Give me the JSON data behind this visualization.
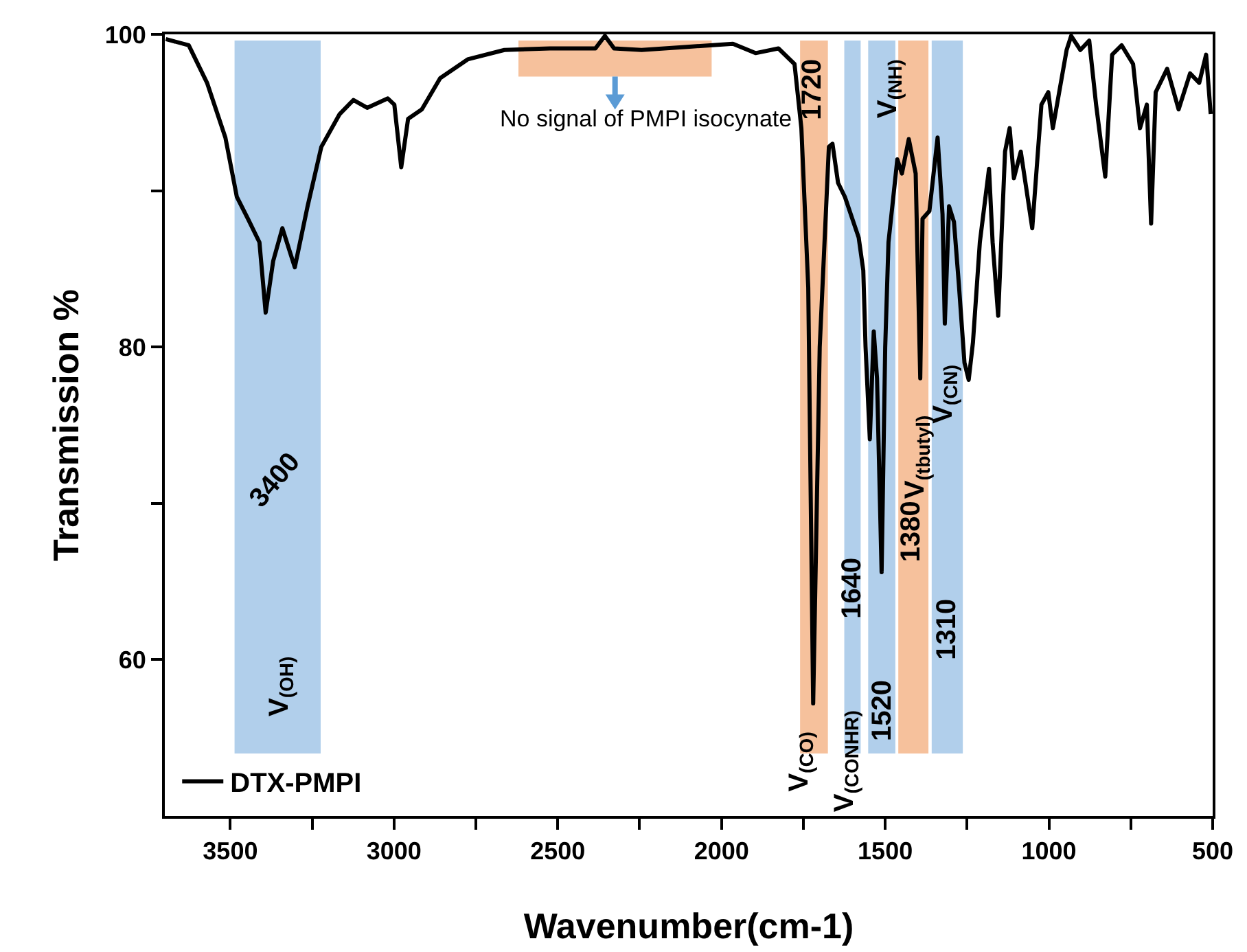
{
  "chart_data": {
    "type": "line",
    "xlabel": "Wavenumber(cm-1)",
    "ylabel": "Transmission %",
    "xlim": [
      3700,
      500
    ],
    "xticks": [
      3500,
      {
        "value": 3250,
        "label": null
      },
      3000,
      {
        "value": 2750,
        "label": null
      },
      2500,
      {
        "value": 2250,
        "label": null
      },
      2000,
      {
        "value": 1750,
        "label": null
      },
      1500,
      {
        "value": 1250,
        "label": null
      },
      1000,
      {
        "value": 750,
        "label": null
      },
      500
    ],
    "ylim": [
      50,
      100
    ],
    "yticks": [
      60,
      {
        "value": 70,
        "label": null
      },
      80,
      {
        "value": 90,
        "label": null
      },
      100
    ],
    "grid": false,
    "legend": "bottom left",
    "marker": "none",
    "line_style": "solid",
    "series": [
      {
        "name": "DTX-PMPI",
        "color": "#000000",
        "x": [
          3697,
          3627,
          3571,
          3515,
          3480,
          3446,
          3411,
          3392,
          3369,
          3341,
          3303,
          3264,
          3222,
          3166,
          3124,
          3082,
          3019,
          2999,
          2978,
          2957,
          2915,
          2859,
          2775,
          2663,
          2524,
          2385,
          2356,
          2328,
          2244,
          2105,
          1965,
          1896,
          1826,
          1777,
          1756,
          1735,
          1720,
          1700,
          1672,
          1661,
          1644,
          1623,
          1581,
          1567,
          1560,
          1547,
          1535,
          1525,
          1511,
          1500,
          1490,
          1463,
          1449,
          1428,
          1407,
          1393,
          1386,
          1365,
          1340,
          1325,
          1318,
          1305,
          1290,
          1275,
          1258,
          1245,
          1232,
          1211,
          1183,
          1172,
          1155,
          1134,
          1120,
          1107,
          1086,
          1051,
          1023,
          1002,
          988,
          946,
          932,
          904,
          877,
          856,
          828,
          807,
          778,
          743,
          722,
          701,
          688,
          674,
          639,
          604,
          569,
          541,
          520,
          506
        ],
        "values": [
          99.7,
          99.3,
          96.9,
          93.4,
          89.6,
          88.2,
          86.7,
          82.2,
          85.5,
          87.6,
          85.1,
          89.0,
          92.8,
          94.9,
          95.8,
          95.3,
          95.9,
          95.5,
          91.5,
          94.6,
          95.2,
          97.2,
          98.4,
          99.0,
          99.1,
          99.1,
          99.9,
          99.1,
          99.0,
          99.2,
          99.4,
          98.8,
          99.1,
          98.1,
          94.0,
          83.8,
          57.2,
          80.0,
          92.8,
          93.0,
          90.5,
          89.6,
          87.0,
          84.9,
          80.0,
          74.1,
          81.0,
          78.0,
          65.6,
          80.0,
          86.7,
          92.0,
          91.1,
          93.3,
          91.1,
          78.0,
          88.2,
          88.7,
          93.4,
          88.5,
          81.5,
          89.0,
          88.0,
          84.0,
          79.0,
          77.9,
          80.3,
          86.7,
          91.4,
          86.7,
          82.0,
          92.5,
          94.0,
          90.8,
          92.5,
          87.6,
          95.5,
          96.3,
          94.0,
          99.0,
          99.9,
          99.0,
          99.6,
          95.5,
          90.9,
          98.7,
          99.3,
          98.1,
          94.0,
          95.5,
          87.9,
          96.3,
          97.8,
          95.2,
          97.5,
          96.9,
          98.7,
          94.9
        ]
      }
    ],
    "bands": [
      {
        "axis": "x",
        "from": 3487,
        "to": 3224,
        "color": "#9dc3e6"
      },
      {
        "axis": "x",
        "from": 2620,
        "to": 2030,
        "color": "#f4b183"
      },
      {
        "axis": "x",
        "from": 1760,
        "to": 1675,
        "color": "#f4b183"
      },
      {
        "axis": "x",
        "from": 1625,
        "to": 1575,
        "color": "#9dc3e6"
      },
      {
        "axis": "x",
        "from": 1552,
        "to": 1469,
        "color": "#9dc3e6"
      },
      {
        "axis": "x",
        "from": 1460,
        "to": 1368,
        "color": "#f4b183"
      },
      {
        "axis": "x",
        "from": 1358,
        "to": 1263,
        "color": "#9dc3e6"
      }
    ],
    "annotations": [
      "No signal of PMPI isocynate",
      "3400",
      "V$_{(OH)}$",
      "1720",
      "V$_{(CO)}$",
      "V$_{(CONHR)}$",
      "1640",
      "1520",
      "V$_{(NH)}$",
      "1380",
      "V$_{(tbutyl)}$",
      "1310",
      "V$_{(CN)}$"
    ]
  }
}
